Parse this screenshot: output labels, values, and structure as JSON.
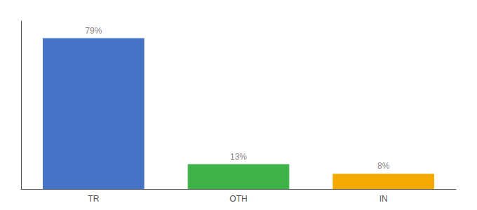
{
  "chart_data": {
    "type": "bar",
    "categories": [
      "TR",
      "OTH",
      "IN"
    ],
    "values": [
      79,
      13,
      8
    ],
    "value_labels": [
      "79%",
      "13%",
      "8%"
    ],
    "colors": [
      "#4472c4",
      "#3db34a",
      "#f5a800"
    ],
    "ylim": [
      0,
      88
    ],
    "grid": false,
    "data_labels": true,
    "tick_labels": "x"
  }
}
